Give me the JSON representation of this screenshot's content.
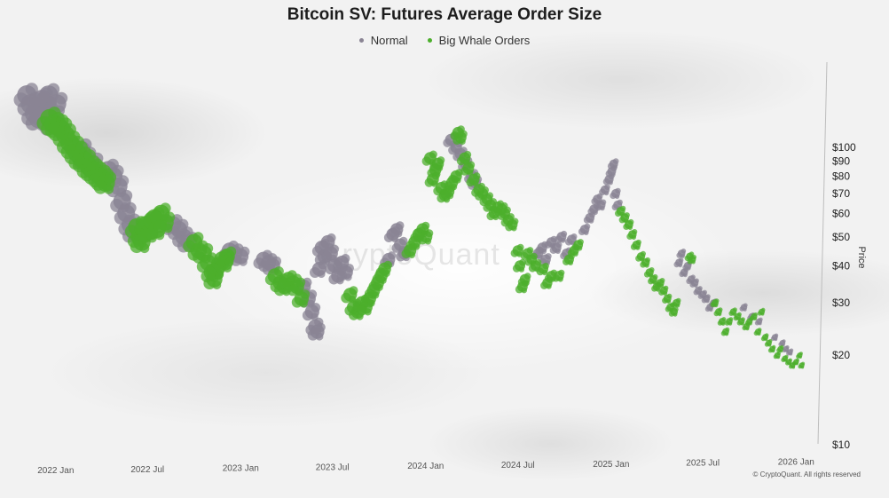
{
  "chart_data": {
    "type": "scatter",
    "title": "Bitcoin SV: Futures Average Order Size",
    "legend": [
      {
        "name": "Normal",
        "color": "#8a8494"
      },
      {
        "name": "Big Whale Orders",
        "color": "#4caf2c"
      }
    ],
    "legend_placement": "top-center",
    "ylabel": "Price",
    "y_scale": "log",
    "ylim": [
      10,
      160
    ],
    "y_ticks": [
      100,
      90,
      80,
      70,
      60,
      50,
      40,
      30,
      20,
      10
    ],
    "y_tick_labels": [
      "$100",
      "$90",
      "$80",
      "$70",
      "$60",
      "$50",
      "$40",
      "$30",
      "$20",
      "$10"
    ],
    "x_tick_labels": [
      "2022 Jan",
      "2022 Jul",
      "2023 Jan",
      "2023 Jul",
      "2024 Jan",
      "2024 Jul",
      "2025 Jan",
      "2025 Jul",
      "2026 Jan"
    ],
    "x_tick_dates": [
      "2022-01-01",
      "2022-07-01",
      "2023-01-01",
      "2023-07-01",
      "2024-01-01",
      "2024-07-01",
      "2025-01-01",
      "2025-07-01",
      "2026-01-01"
    ],
    "xlim": [
      "2021-11-01",
      "2026-02-01"
    ],
    "grid": false,
    "series": [
      {
        "name": "Normal",
        "color": "#8a8494",
        "points": [
          [
            "2021-11-05",
            150
          ],
          [
            "2021-11-12",
            140
          ],
          [
            "2021-11-20",
            130
          ],
          [
            "2021-11-28",
            125
          ],
          [
            "2021-12-05",
            145
          ],
          [
            "2021-12-12",
            135
          ],
          [
            "2021-12-18",
            150
          ],
          [
            "2021-12-26",
            120
          ],
          [
            "2022-01-03",
            140
          ],
          [
            "2022-02-20",
            98
          ],
          [
            "2022-03-01",
            92
          ],
          [
            "2022-03-15",
            88
          ],
          [
            "2022-04-15",
            84
          ],
          [
            "2022-04-25",
            80
          ],
          [
            "2022-05-05",
            74
          ],
          [
            "2022-05-12",
            66
          ],
          [
            "2022-05-20",
            60
          ],
          [
            "2022-05-28",
            55
          ],
          [
            "2022-06-05",
            52
          ],
          [
            "2022-08-20",
            55
          ],
          [
            "2022-09-01",
            53
          ],
          [
            "2022-09-10",
            50
          ],
          [
            "2022-09-20",
            48
          ],
          [
            "2022-12-10",
            45
          ],
          [
            "2022-12-20",
            44
          ],
          [
            "2023-01-01",
            43
          ],
          [
            "2023-02-15",
            42
          ],
          [
            "2023-02-25",
            41
          ],
          [
            "2023-03-05",
            40
          ],
          [
            "2023-05-05",
            34
          ],
          [
            "2023-05-15",
            31
          ],
          [
            "2023-05-22",
            28
          ],
          [
            "2023-05-28",
            25
          ],
          [
            "2023-06-01",
            24
          ],
          [
            "2023-06-05",
            39
          ],
          [
            "2023-06-10",
            46
          ],
          [
            "2023-06-15",
            43
          ],
          [
            "2023-06-22",
            48
          ],
          [
            "2023-06-28",
            44
          ],
          [
            "2023-07-05",
            40
          ],
          [
            "2023-07-12",
            37
          ],
          [
            "2023-07-20",
            41
          ],
          [
            "2023-07-28",
            38
          ],
          [
            "2023-10-20",
            42
          ],
          [
            "2023-10-28",
            51
          ],
          [
            "2023-11-05",
            53
          ],
          [
            "2023-11-12",
            47
          ],
          [
            "2023-11-20",
            44
          ],
          [
            "2024-02-20",
            106
          ],
          [
            "2024-03-01",
            100
          ],
          [
            "2024-03-10",
            95
          ],
          [
            "2024-03-20",
            88
          ],
          [
            "2024-04-01",
            80
          ],
          [
            "2024-04-08",
            76
          ],
          [
            "2024-08-10",
            44
          ],
          [
            "2024-08-18",
            46
          ],
          [
            "2024-08-25",
            42
          ],
          [
            "2024-09-05",
            48
          ],
          [
            "2024-09-15",
            46
          ],
          [
            "2024-09-25",
            50
          ],
          [
            "2024-10-05",
            44
          ],
          [
            "2024-10-15",
            49
          ],
          [
            "2024-11-10",
            53
          ],
          [
            "2024-11-20",
            58
          ],
          [
            "2024-11-28",
            62
          ],
          [
            "2024-12-05",
            67
          ],
          [
            "2024-12-12",
            64
          ],
          [
            "2024-12-20",
            72
          ],
          [
            "2024-12-28",
            78
          ],
          [
            "2025-01-02",
            83
          ],
          [
            "2025-01-06",
            88
          ],
          [
            "2025-01-10",
            70
          ],
          [
            "2025-01-14",
            64
          ],
          [
            "2025-05-15",
            41
          ],
          [
            "2025-05-20",
            44
          ],
          [
            "2025-05-25",
            38
          ],
          [
            "2025-06-01",
            40
          ],
          [
            "2025-06-08",
            36
          ],
          [
            "2025-06-15",
            35
          ],
          [
            "2025-06-22",
            33
          ],
          [
            "2025-07-01",
            32
          ],
          [
            "2025-07-08",
            31
          ],
          [
            "2025-07-15",
            29
          ],
          [
            "2025-07-22",
            30
          ],
          [
            "2025-09-20",
            29
          ],
          [
            "2025-10-05",
            27
          ],
          [
            "2025-10-20",
            26
          ],
          [
            "2025-11-20",
            23
          ],
          [
            "2025-12-05",
            22
          ],
          [
            "2025-12-12",
            21
          ],
          [
            "2025-12-20",
            20.5
          ]
        ]
      },
      {
        "name": "Big Whale Orders",
        "color": "#4caf2c",
        "points": [
          [
            "2021-12-20",
            125
          ],
          [
            "2021-12-28",
            120
          ],
          [
            "2022-01-05",
            118
          ],
          [
            "2022-01-12",
            115
          ],
          [
            "2022-01-20",
            110
          ],
          [
            "2022-01-28",
            104
          ],
          [
            "2022-02-05",
            100
          ],
          [
            "2022-02-12",
            96
          ],
          [
            "2022-02-20",
            92
          ],
          [
            "2022-02-28",
            90
          ],
          [
            "2022-03-08",
            86
          ],
          [
            "2022-03-15",
            84
          ],
          [
            "2022-03-22",
            82
          ],
          [
            "2022-03-30",
            80
          ],
          [
            "2022-04-05",
            78
          ],
          [
            "2022-04-10",
            76
          ],
          [
            "2022-06-10",
            54
          ],
          [
            "2022-06-15",
            50
          ],
          [
            "2022-06-20",
            48
          ],
          [
            "2022-06-28",
            55
          ],
          [
            "2022-07-05",
            52
          ],
          [
            "2022-07-10",
            57
          ],
          [
            "2022-07-15",
            58
          ],
          [
            "2022-07-20",
            53
          ],
          [
            "2022-07-28",
            60
          ],
          [
            "2022-08-05",
            56
          ],
          [
            "2022-10-01",
            48
          ],
          [
            "2022-10-10",
            45
          ],
          [
            "2022-10-20",
            44
          ],
          [
            "2022-10-28",
            41
          ],
          [
            "2022-11-05",
            38
          ],
          [
            "2022-11-10",
            36
          ],
          [
            "2022-11-15",
            39
          ],
          [
            "2022-11-25",
            42
          ],
          [
            "2022-12-01",
            41
          ],
          [
            "2022-12-05",
            43
          ],
          [
            "2023-03-10",
            37
          ],
          [
            "2023-03-20",
            35
          ],
          [
            "2023-03-28",
            34
          ],
          [
            "2023-04-05",
            36
          ],
          [
            "2023-04-15",
            35
          ],
          [
            "2023-04-22",
            34
          ],
          [
            "2023-05-01",
            31
          ],
          [
            "2023-08-05",
            32
          ],
          [
            "2023-08-12",
            29
          ],
          [
            "2023-08-20",
            28
          ],
          [
            "2023-08-28",
            30
          ],
          [
            "2023-09-05",
            29
          ],
          [
            "2023-09-12",
            31
          ],
          [
            "2023-09-20",
            33
          ],
          [
            "2023-09-28",
            35
          ],
          [
            "2023-10-05",
            37
          ],
          [
            "2023-10-12",
            39
          ],
          [
            "2023-12-01",
            45
          ],
          [
            "2023-12-10",
            48
          ],
          [
            "2023-12-18",
            51
          ],
          [
            "2023-12-26",
            53
          ],
          [
            "2024-01-02",
            50
          ],
          [
            "2024-01-10",
            92
          ],
          [
            "2024-01-15",
            78
          ],
          [
            "2024-01-20",
            84
          ],
          [
            "2024-01-25",
            88
          ],
          [
            "2024-02-01",
            73
          ],
          [
            "2024-02-08",
            69
          ],
          [
            "2024-02-15",
            71
          ],
          [
            "2024-02-22",
            76
          ],
          [
            "2024-03-01",
            80
          ],
          [
            "2024-03-05",
            112
          ],
          [
            "2024-03-10",
            108
          ],
          [
            "2024-03-18",
            92
          ],
          [
            "2024-03-25",
            85
          ],
          [
            "2024-04-05",
            78
          ],
          [
            "2024-04-15",
            72
          ],
          [
            "2024-04-22",
            70
          ],
          [
            "2024-05-01",
            67
          ],
          [
            "2024-05-08",
            64
          ],
          [
            "2024-05-15",
            60
          ],
          [
            "2024-05-22",
            63
          ],
          [
            "2024-05-30",
            62
          ],
          [
            "2024-06-05",
            60
          ],
          [
            "2024-06-12",
            57
          ],
          [
            "2024-06-20",
            55
          ],
          [
            "2024-07-01",
            45
          ],
          [
            "2024-07-05",
            40
          ],
          [
            "2024-07-10",
            34
          ],
          [
            "2024-07-15",
            36
          ],
          [
            "2024-07-20",
            44
          ],
          [
            "2024-07-28",
            42
          ],
          [
            "2024-08-05",
            40
          ],
          [
            "2024-08-20",
            39
          ],
          [
            "2024-08-28",
            35
          ],
          [
            "2024-09-05",
            37
          ],
          [
            "2024-09-20",
            37
          ],
          [
            "2024-10-10",
            42
          ],
          [
            "2024-10-20",
            45
          ],
          [
            "2024-10-28",
            47
          ],
          [
            "2025-01-20",
            61
          ],
          [
            "2025-01-28",
            58
          ],
          [
            "2025-02-05",
            55
          ],
          [
            "2025-02-12",
            51
          ],
          [
            "2025-02-20",
            47
          ],
          [
            "2025-03-01",
            43
          ],
          [
            "2025-03-10",
            41
          ],
          [
            "2025-03-18",
            38
          ],
          [
            "2025-03-25",
            36
          ],
          [
            "2025-04-01",
            34
          ],
          [
            "2025-04-08",
            35
          ],
          [
            "2025-04-15",
            33
          ],
          [
            "2025-04-22",
            31
          ],
          [
            "2025-04-28",
            29
          ],
          [
            "2025-05-05",
            28
          ],
          [
            "2025-05-10",
            30
          ],
          [
            "2025-06-05",
            43
          ],
          [
            "2025-06-10",
            42
          ],
          [
            "2025-07-25",
            30
          ],
          [
            "2025-08-01",
            28
          ],
          [
            "2025-08-08",
            26
          ],
          [
            "2025-08-15",
            24
          ],
          [
            "2025-08-22",
            26
          ],
          [
            "2025-08-30",
            28
          ],
          [
            "2025-09-08",
            27
          ],
          [
            "2025-09-15",
            26
          ],
          [
            "2025-09-25",
            25
          ],
          [
            "2025-10-01",
            26
          ],
          [
            "2025-10-10",
            27
          ],
          [
            "2025-10-18",
            24
          ],
          [
            "2025-10-25",
            28
          ],
          [
            "2025-11-01",
            23
          ],
          [
            "2025-11-08",
            22
          ],
          [
            "2025-11-15",
            21
          ],
          [
            "2025-11-25",
            20
          ],
          [
            "2025-12-01",
            21
          ],
          [
            "2025-12-10",
            19.5
          ],
          [
            "2025-12-18",
            19
          ],
          [
            "2025-12-25",
            18.5
          ],
          [
            "2026-01-01",
            19
          ],
          [
            "2026-01-08",
            20
          ],
          [
            "2026-01-12",
            18.5
          ]
        ]
      }
    ]
  },
  "footer": {
    "copyright": "© CryptoQuant. All rights reserved",
    "watermark": "CryptoQuant"
  }
}
